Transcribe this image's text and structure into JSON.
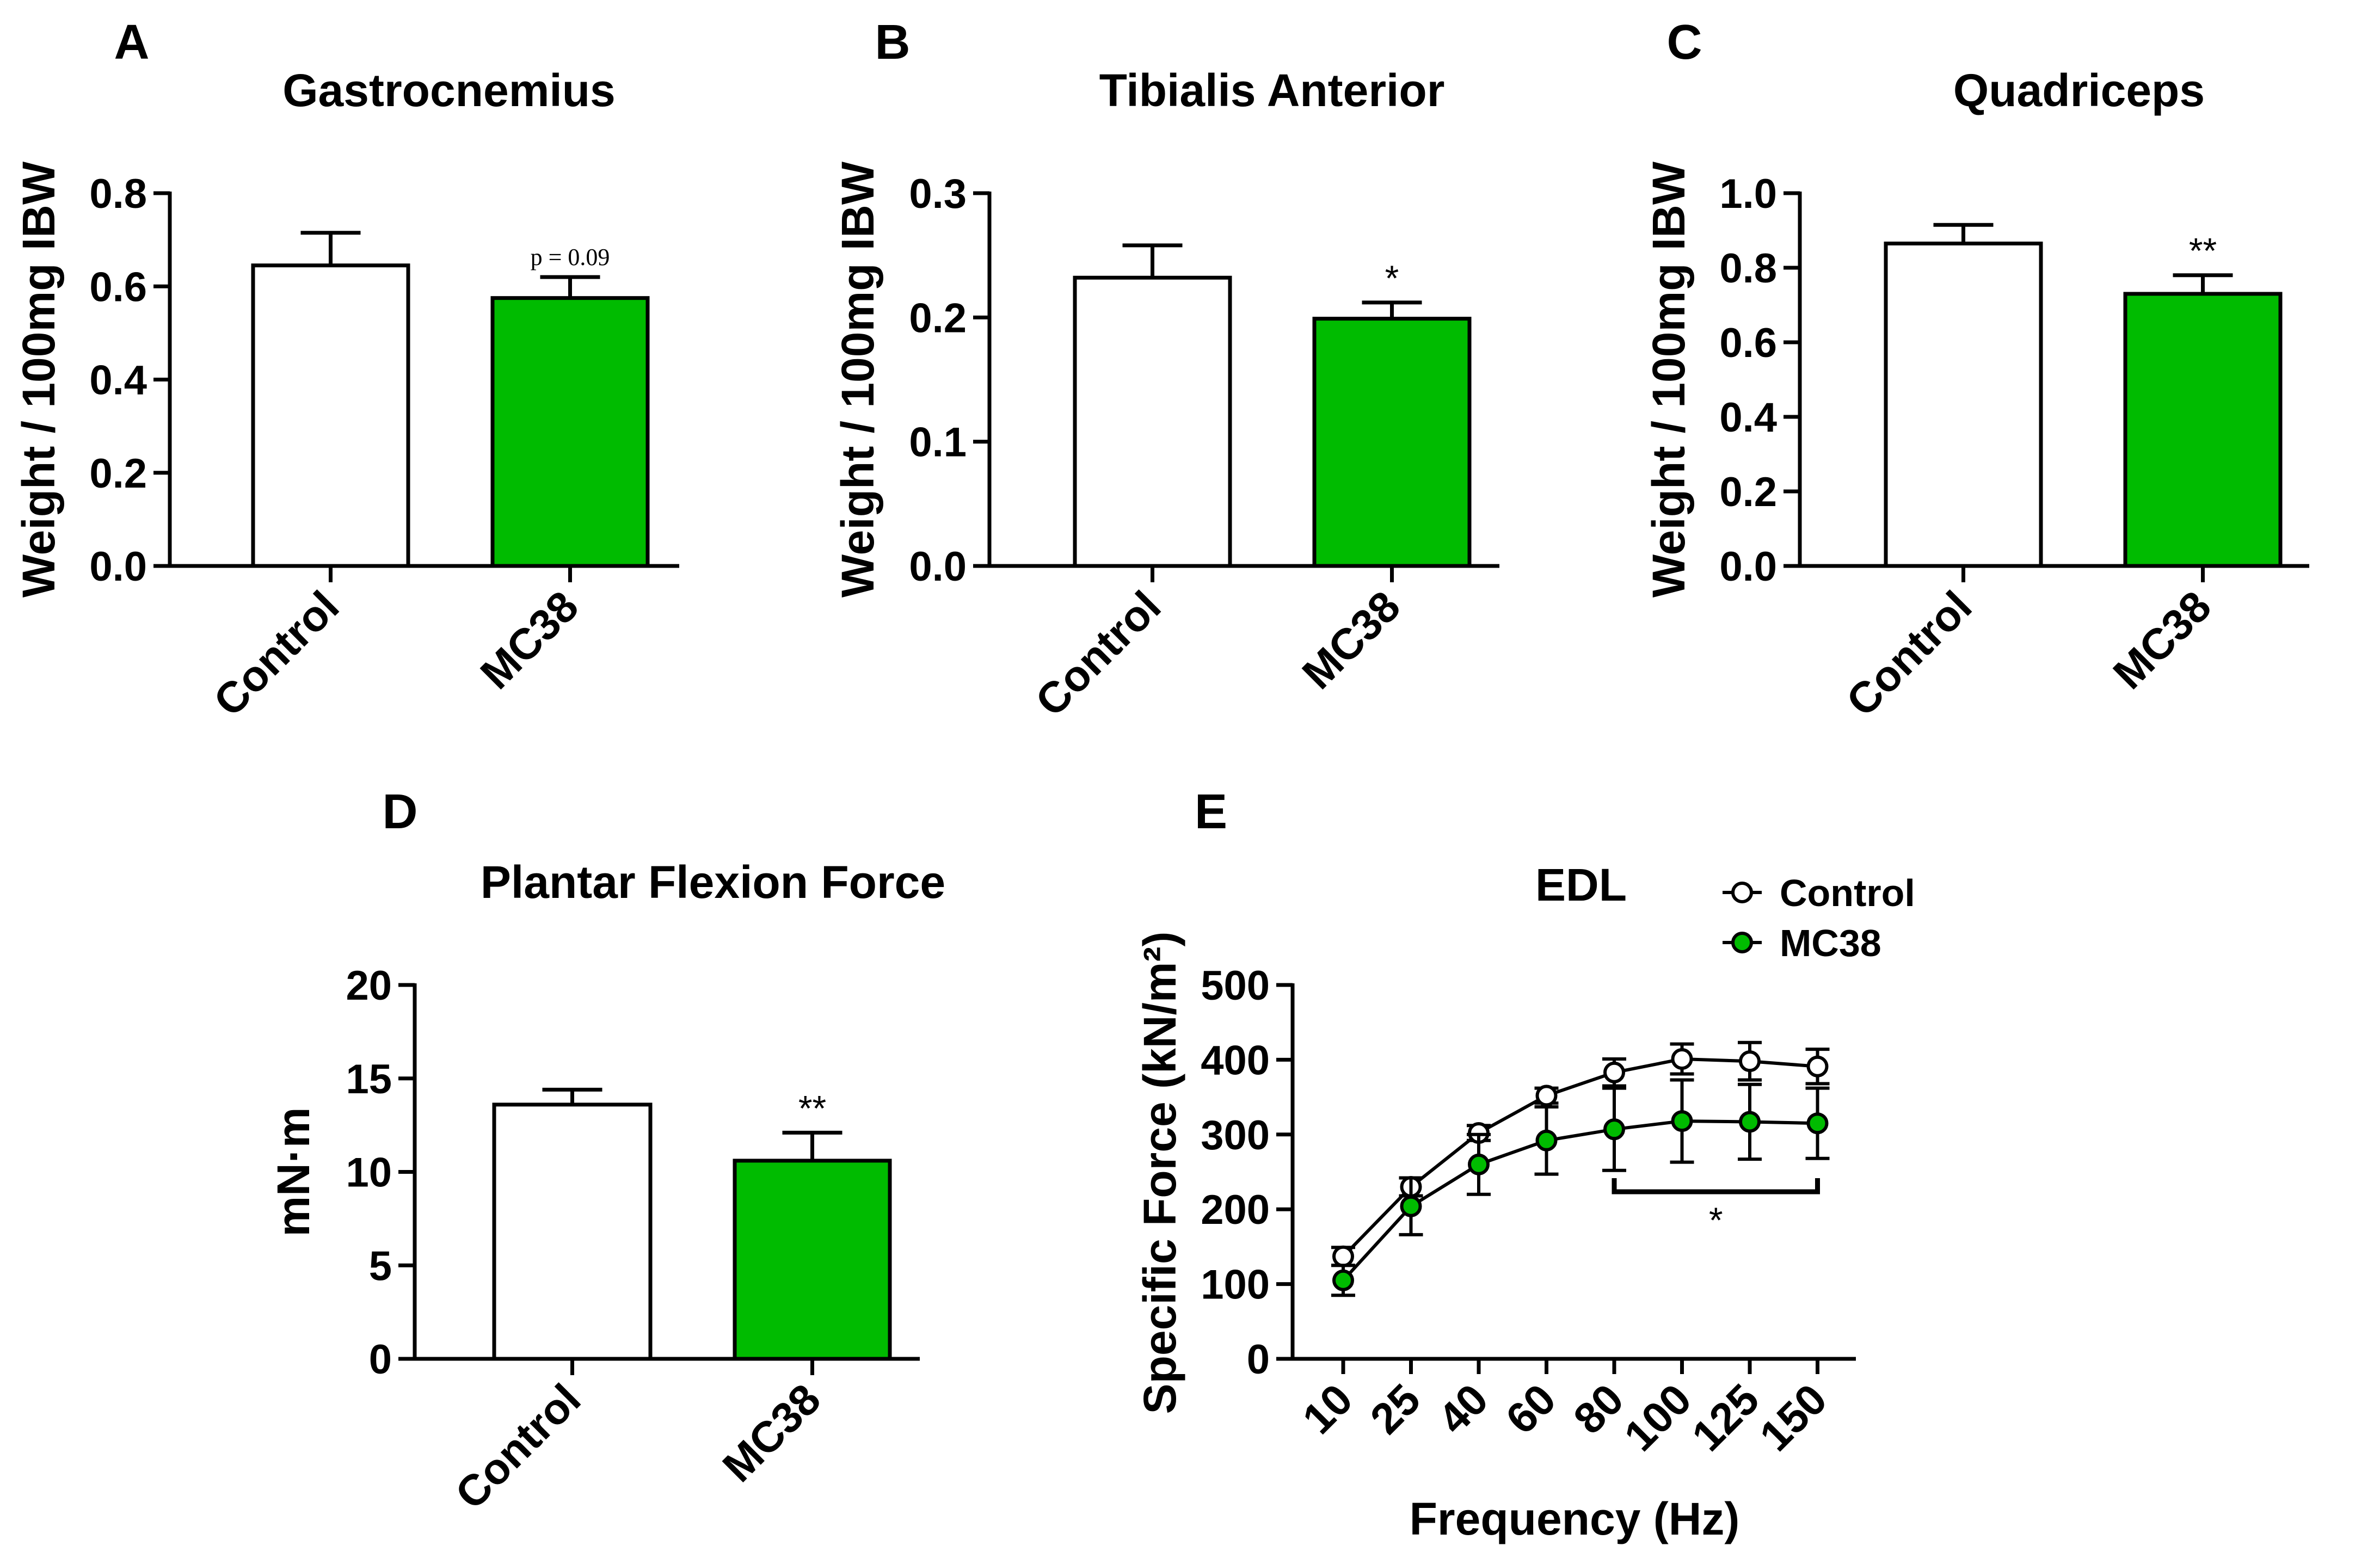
{
  "colors": {
    "control": "#ffffff",
    "mc38": "#00bb00",
    "stroke": "#000000"
  },
  "chart_data": [
    {
      "panel": "A",
      "type": "bar",
      "title": "Gastrocnemius",
      "ylabel": "Weight / 100mg IBW",
      "ylim": [
        0,
        0.8
      ],
      "yticks": [
        "0.0",
        "0.2",
        "0.4",
        "0.6",
        "0.8"
      ],
      "categories": [
        "Control",
        "MC38"
      ],
      "values": [
        0.645,
        0.575
      ],
      "errors": [
        0.07,
        0.045
      ],
      "annotations": [
        "",
        "p = 0.09"
      ]
    },
    {
      "panel": "B",
      "type": "bar",
      "title": "Tibialis Anterior",
      "ylabel": "Weight / 100mg IBW",
      "ylim": [
        0,
        0.3
      ],
      "yticks": [
        "0.0",
        "0.1",
        "0.2",
        "0.3"
      ],
      "categories": [
        "Control",
        "MC38"
      ],
      "values": [
        0.232,
        0.199
      ],
      "errors": [
        0.026,
        0.013
      ],
      "annotations": [
        "",
        "*"
      ]
    },
    {
      "panel": "C",
      "type": "bar",
      "title": "Quadriceps",
      "ylabel": "Weight / 100mg IBW",
      "ylim": [
        0,
        1.0
      ],
      "yticks": [
        "0.0",
        "0.2",
        "0.4",
        "0.6",
        "0.8",
        "1.0"
      ],
      "categories": [
        "Control",
        "MC38"
      ],
      "values": [
        0.865,
        0.73
      ],
      "errors": [
        0.05,
        0.05
      ],
      "annotations": [
        "",
        "**"
      ]
    },
    {
      "panel": "D",
      "type": "bar",
      "title": "Plantar Flexion Force",
      "ylabel": "mN·m",
      "ylim": [
        0,
        20
      ],
      "yticks": [
        "0",
        "5",
        "10",
        "15",
        "20"
      ],
      "categories": [
        "Control",
        "MC38"
      ],
      "values": [
        13.6,
        10.6
      ],
      "errors": [
        0.8,
        1.5
      ],
      "annotations": [
        "",
        "**"
      ]
    },
    {
      "panel": "E",
      "type": "line",
      "title": "EDL",
      "xlabel": "Frequency (Hz)",
      "ylabel": "Specific Force (kN/m²)",
      "ylim": [
        0,
        500
      ],
      "yticks": [
        "0",
        "100",
        "200",
        "300",
        "400",
        "500"
      ],
      "x": [
        "10",
        "25",
        "40",
        "60",
        "80",
        "100",
        "125",
        "150"
      ],
      "series": [
        {
          "name": "Control",
          "values": [
            137,
            230,
            302,
            352,
            383,
            401,
            398,
            391
          ],
          "errors": [
            12,
            12,
            10,
            10,
            18,
            20,
            25,
            23
          ]
        },
        {
          "name": "MC38",
          "values": [
            105,
            204,
            260,
            292,
            307,
            318,
            317,
            315
          ],
          "errors": [
            20,
            38,
            40,
            45,
            55,
            55,
            50,
            47
          ]
        }
      ],
      "significance": {
        "label": "*",
        "from": "80",
        "to": "150"
      }
    }
  ]
}
